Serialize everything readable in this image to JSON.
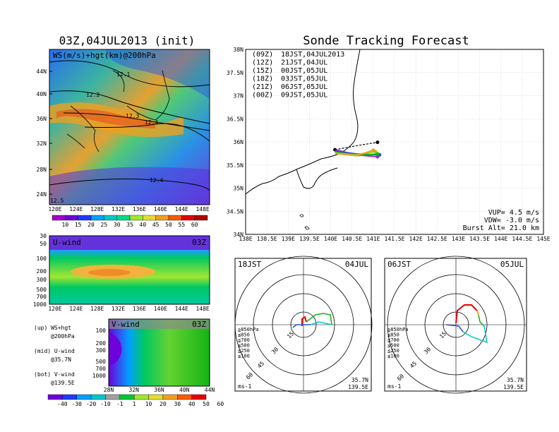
{
  "left_title": "03Z,04JUL2013 (init)",
  "right_title": "Sonde Tracking Forecast",
  "ws_panel": {
    "label": "WS(m/s)+hgt(km)@200hPa",
    "lat_ticks": [
      "44N",
      "40N",
      "36N",
      "32N",
      "28N",
      "24N"
    ],
    "lon_ticks": [
      "120E",
      "124E",
      "128E",
      "132E",
      "136E",
      "140E",
      "144E",
      "148E"
    ],
    "contour_labels": [
      "12.1",
      "12.2",
      "12.3",
      "12.4",
      "12.4",
      "12.5"
    ],
    "colorbar_ticks": [
      "10",
      "15",
      "20",
      "25",
      "30",
      "35",
      "40",
      "45",
      "50",
      "55",
      "60"
    ],
    "colorbar_colors": [
      "#a000c8",
      "#6e00dc",
      "#1e3cff",
      "#00a0ff",
      "#00c8c8",
      "#00dc82",
      "#a0e632",
      "#e6dc32",
      "#f0a01e",
      "#fa5a00",
      "#e60000",
      "#b00000"
    ]
  },
  "u_panel": {
    "label": "U-wind",
    "time": "03Z",
    "p_ticks": [
      "30",
      "50",
      "100",
      "200",
      "300",
      "500",
      "700",
      "1000"
    ],
    "lon_ticks": [
      "120E",
      "124E",
      "128E",
      "132E",
      "136E",
      "140E",
      "144E",
      "148E"
    ]
  },
  "v_panel": {
    "label": "V-wind",
    "time": "03Z",
    "p_ticks": [
      "100",
      "200",
      "300",
      "500",
      "700",
      "1000"
    ],
    "lat_ticks": [
      "28N",
      "32N",
      "36N",
      "40N",
      "44N"
    ]
  },
  "legend_notes": [
    {
      "a": "(up)  WS+hgt",
      "b": "@200hPa"
    },
    {
      "a": "(mid) U-wind",
      "b": "@35.7N"
    },
    {
      "a": "(bot) V-wind",
      "b": "@139.5E"
    }
  ],
  "bottom_colorbar": {
    "ticks": [
      "-40",
      "-30",
      "-20",
      "-10",
      "-1",
      "1",
      "10",
      "20",
      "30",
      "40",
      "50",
      "60"
    ],
    "colors": [
      "#6e00dc",
      "#1e3cff",
      "#00a0ff",
      "#00c8c8",
      "#a0a0a0",
      "#00c832",
      "#a0e632",
      "#e6dc32",
      "#f0a01e",
      "#fa5a00",
      "#e60000"
    ]
  },
  "track_map": {
    "lat_ticks": [
      "38N",
      "37.5N",
      "37N",
      "36.5N",
      "36N",
      "35.5N",
      "35N",
      "34.5N",
      "34N"
    ],
    "lon_ticks": [
      "138E",
      "138.5E",
      "139E",
      "139.5E",
      "140E",
      "140.5E",
      "141E",
      "141.5E",
      "142E",
      "142.5E",
      "143E",
      "143.5E",
      "144E",
      "144.5E",
      "145E"
    ],
    "legend": [
      {
        "code": "(09Z)",
        "time": "18JST,04JUL2013",
        "color": "#000000"
      },
      {
        "code": "(12Z)",
        "time": "21JST,04JUL",
        "color": "#a020c8"
      },
      {
        "code": "(15Z)",
        "time": "00JST,05JUL",
        "color": "#2850dc"
      },
      {
        "code": "(18Z)",
        "time": "03JST,05JUL",
        "color": "#14b414"
      },
      {
        "code": "(21Z)",
        "time": "06JST,05JUL",
        "color": "#8cd214"
      },
      {
        "code": "(00Z)",
        "time": "09JST,05JUL",
        "color": "#f0a01e"
      }
    ],
    "info": [
      "VUP= 4.5 m/s",
      "VDW= -3.0 m/s",
      "Burst Alt= 21.0 km"
    ]
  },
  "hodo_left": {
    "time": "18JST",
    "date": "04JUL",
    "ring_labels": [
      "15",
      "30",
      "45",
      "60"
    ],
    "levels": [
      {
        "label": "≧850hPa",
        "color": "#e60000"
      },
      {
        "label": "≦850",
        "color": "#f0a01e"
      },
      {
        "label": "≦700",
        "color": "#8cd214"
      },
      {
        "label": "≦500",
        "color": "#14b414"
      },
      {
        "label": "≦250",
        "color": "#00c8c8"
      },
      {
        "label": "≦100",
        "color": "#2850dc"
      }
    ],
    "unit": "ms-1",
    "loc1": "35.7N",
    "loc2": "139.5E"
  },
  "hodo_right": {
    "time": "06JST",
    "date": "05JUL",
    "ring_labels": [
      "15",
      "30",
      "45",
      "60"
    ],
    "levels": [
      {
        "label": "≧850hPa",
        "color": "#e60000"
      },
      {
        "label": "≦850",
        "color": "#f0a01e"
      },
      {
        "label": "≦700",
        "color": "#8cd214"
      },
      {
        "label": "≦500",
        "color": "#14b414"
      },
      {
        "label": "≦250",
        "color": "#00c8c8"
      },
      {
        "label": "≦100",
        "color": "#2850dc"
      }
    ],
    "unit": "ms-1",
    "loc1": "35.7N",
    "loc2": "139.5E"
  },
  "chart_data": [
    {
      "type": "heatmap",
      "title": "03Z,04JUL2013 (init)",
      "label": "WS(m/s)+hgt(km)@200hPa",
      "x": [
        "120E",
        "124E",
        "128E",
        "132E",
        "136E",
        "140E",
        "144E",
        "148E"
      ],
      "y": [
        "24N",
        "28N",
        "32N",
        "36N",
        "40N",
        "44N"
      ]
    },
    {
      "type": "heatmap",
      "label": "U-wind",
      "x": [
        "120E",
        "124E",
        "128E",
        "132E",
        "136E",
        "140E",
        "144E",
        "148E"
      ],
      "y": [
        "1000",
        "700",
        "500",
        "300",
        "200",
        "100",
        "50",
        "30"
      ]
    },
    {
      "type": "heatmap",
      "label": "V-wind",
      "x": [
        "28N",
        "32N",
        "36N",
        "40N",
        "44N"
      ],
      "y": [
        "1000",
        "700",
        "500",
        "300",
        "200",
        "100"
      ]
    },
    {
      "type": "line",
      "title": "Sonde Tracking Forecast",
      "series": [
        {
          "name": "(09Z) 18JST,04JUL2013",
          "x": [
            140.1
          ],
          "y": [
            35.83
          ]
        },
        {
          "name": "(12Z) 21JST,04JUL",
          "x": [
            140.1,
            140.6,
            141.1
          ],
          "y": [
            35.83,
            35.72,
            35.68
          ]
        },
        {
          "name": "(15Z) 00JST,05JUL",
          "x": [
            140.1,
            140.6,
            141.15
          ],
          "y": [
            35.8,
            35.74,
            35.72
          ]
        },
        {
          "name": "(18Z) 03JST,05JUL",
          "x": [
            140.1,
            140.6,
            141.1
          ],
          "y": [
            35.78,
            35.7,
            35.74
          ]
        },
        {
          "name": "(21Z) 06JST,05JUL",
          "x": [
            140.1,
            140.6,
            141.05
          ],
          "y": [
            35.76,
            35.72,
            35.79
          ]
        },
        {
          "name": "(00Z) 09JST,05JUL",
          "x": [
            140.1,
            140.6,
            141.0
          ],
          "y": [
            35.75,
            35.7,
            35.82
          ]
        }
      ]
    }
  ]
}
